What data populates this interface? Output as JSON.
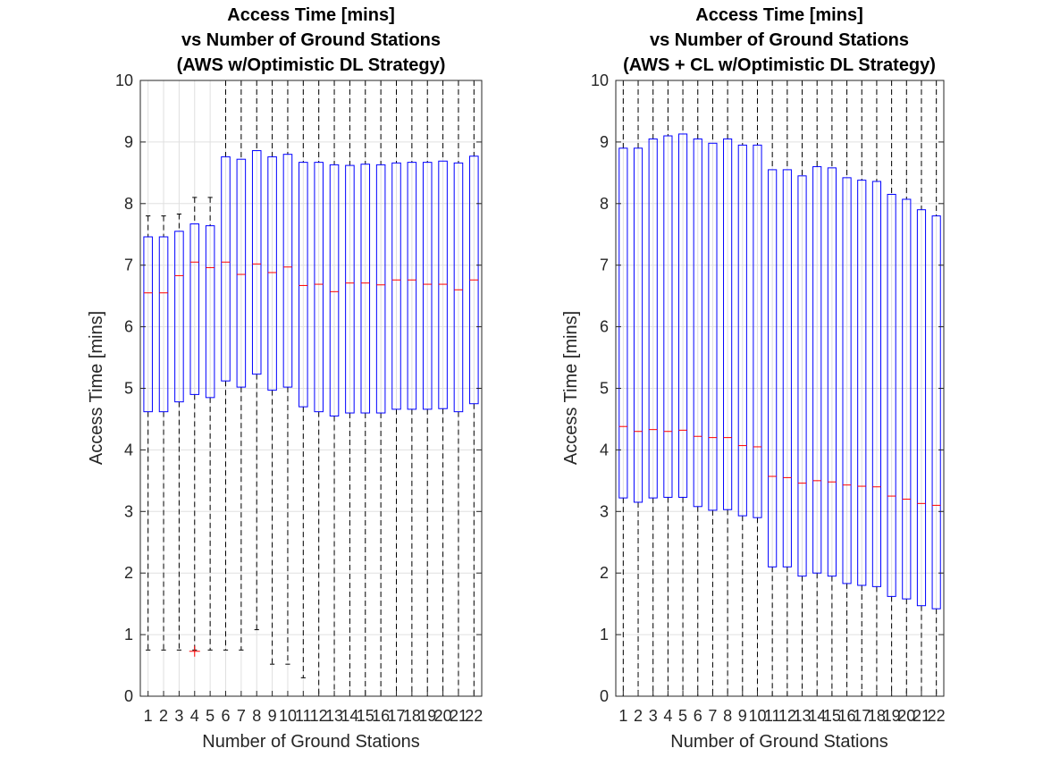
{
  "colors": {
    "box": "#0000ff",
    "median": "#ff0000",
    "whisker": "#000000",
    "outlier": "#ff0000",
    "grid": "#e0e0e0",
    "axis": "#262626"
  },
  "chart_data": [
    {
      "type": "boxplot",
      "title": [
        "Access Time [mins]",
        "vs Number of Ground Stations",
        "(AWS w/Optimistic DL Strategy)"
      ],
      "xlabel": "Number of Ground Stations",
      "ylabel": "Access Time [mins]",
      "ylim": [
        0,
        10
      ],
      "yticks": [
        0,
        1,
        2,
        3,
        4,
        5,
        6,
        7,
        8,
        9,
        10
      ],
      "grid": true,
      "categories": [
        "1",
        "2",
        "3",
        "4",
        "5",
        "6",
        "7",
        "8",
        "9",
        "10",
        "11",
        "12",
        "13",
        "14",
        "15",
        "16",
        "17",
        "18",
        "19",
        "20",
        "21",
        "22"
      ],
      "boxes": [
        {
          "whisker_low": 0.75,
          "q1": 4.62,
          "median": 6.55,
          "q3": 7.46,
          "whisker_high": 7.8
        },
        {
          "whisker_low": 0.75,
          "q1": 4.62,
          "median": 6.55,
          "q3": 7.46,
          "whisker_high": 7.8
        },
        {
          "whisker_low": 0.75,
          "q1": 4.78,
          "median": 6.83,
          "q3": 7.55,
          "whisker_high": 7.83
        },
        {
          "whisker_low": 0.75,
          "q1": 4.9,
          "median": 7.05,
          "q3": 7.67,
          "whisker_high": 8.1,
          "outliers": [
            0.73
          ]
        },
        {
          "whisker_low": 0.75,
          "q1": 4.85,
          "median": 6.96,
          "q3": 7.64,
          "whisker_high": 8.1
        },
        {
          "whisker_low": 0.75,
          "q1": 5.12,
          "median": 7.05,
          "q3": 8.76,
          "whisker_high": 10
        },
        {
          "whisker_low": 0.75,
          "q1": 5.02,
          "median": 6.85,
          "q3": 8.72,
          "whisker_high": 10
        },
        {
          "whisker_low": 1.08,
          "q1": 5.23,
          "median": 7.02,
          "q3": 8.86,
          "whisker_high": 10
        },
        {
          "whisker_low": 0.52,
          "q1": 4.97,
          "median": 6.88,
          "q3": 8.76,
          "whisker_high": 10
        },
        {
          "whisker_low": 0.52,
          "q1": 5.02,
          "median": 6.97,
          "q3": 8.8,
          "whisker_high": 10
        },
        {
          "whisker_low": 0.3,
          "q1": 4.7,
          "median": 6.67,
          "q3": 8.67,
          "whisker_high": 10
        },
        {
          "whisker_low": 0,
          "q1": 4.62,
          "median": 6.69,
          "q3": 8.67,
          "whisker_high": 10
        },
        {
          "whisker_low": 0,
          "q1": 4.55,
          "median": 6.57,
          "q3": 8.63,
          "whisker_high": 10
        },
        {
          "whisker_low": 0,
          "q1": 4.6,
          "median": 6.71,
          "q3": 8.62,
          "whisker_high": 10
        },
        {
          "whisker_low": 0,
          "q1": 4.6,
          "median": 6.71,
          "q3": 8.64,
          "whisker_high": 10
        },
        {
          "whisker_low": 0,
          "q1": 4.6,
          "median": 6.68,
          "q3": 8.63,
          "whisker_high": 10
        },
        {
          "whisker_low": 0,
          "q1": 4.66,
          "median": 6.76,
          "q3": 8.66,
          "whisker_high": 10
        },
        {
          "whisker_low": 0,
          "q1": 4.66,
          "median": 6.76,
          "q3": 8.67,
          "whisker_high": 10
        },
        {
          "whisker_low": 0,
          "q1": 4.66,
          "median": 6.69,
          "q3": 8.67,
          "whisker_high": 10
        },
        {
          "whisker_low": 0,
          "q1": 4.67,
          "median": 6.69,
          "q3": 8.69,
          "whisker_high": 10
        },
        {
          "whisker_low": 0,
          "q1": 4.62,
          "median": 6.6,
          "q3": 8.66,
          "whisker_high": 10
        },
        {
          "whisker_low": 0,
          "q1": 4.75,
          "median": 6.76,
          "q3": 8.77,
          "whisker_high": 10
        }
      ]
    },
    {
      "type": "boxplot",
      "title": [
        "Access Time [mins]",
        "vs Number of Ground Stations",
        "(AWS + CL w/Optimistic DL Strategy)"
      ],
      "xlabel": "Number of Ground Stations",
      "ylabel": "Access Time [mins]",
      "ylim": [
        0,
        10
      ],
      "yticks": [
        0,
        1,
        2,
        3,
        4,
        5,
        6,
        7,
        8,
        9,
        10
      ],
      "grid": true,
      "categories": [
        "1",
        "2",
        "3",
        "4",
        "5",
        "6",
        "7",
        "8",
        "9",
        "10",
        "11",
        "12",
        "13",
        "14",
        "15",
        "16",
        "17",
        "18",
        "19",
        "20",
        "21",
        "22"
      ],
      "boxes": [
        {
          "whisker_low": 0,
          "q1": 3.22,
          "median": 4.38,
          "q3": 8.9,
          "whisker_high": 10
        },
        {
          "whisker_low": 0,
          "q1": 3.15,
          "median": 4.3,
          "q3": 8.9,
          "whisker_high": 10
        },
        {
          "whisker_low": 0,
          "q1": 3.22,
          "median": 4.33,
          "q3": 9.05,
          "whisker_high": 10
        },
        {
          "whisker_low": 0,
          "q1": 3.23,
          "median": 4.3,
          "q3": 9.1,
          "whisker_high": 10
        },
        {
          "whisker_low": 0,
          "q1": 3.23,
          "median": 4.32,
          "q3": 9.13,
          "whisker_high": 10
        },
        {
          "whisker_low": 0,
          "q1": 3.08,
          "median": 4.22,
          "q3": 9.05,
          "whisker_high": 10
        },
        {
          "whisker_low": 0,
          "q1": 3.02,
          "median": 4.2,
          "q3": 8.98,
          "whisker_high": 10
        },
        {
          "whisker_low": 0,
          "q1": 3.03,
          "median": 4.2,
          "q3": 9.05,
          "whisker_high": 10
        },
        {
          "whisker_low": 0,
          "q1": 2.93,
          "median": 4.07,
          "q3": 8.95,
          "whisker_high": 10
        },
        {
          "whisker_low": 0,
          "q1": 2.9,
          "median": 4.05,
          "q3": 8.95,
          "whisker_high": 10
        },
        {
          "whisker_low": 0,
          "q1": 2.1,
          "median": 3.57,
          "q3": 8.55,
          "whisker_high": 10
        },
        {
          "whisker_low": 0,
          "q1": 2.1,
          "median": 3.55,
          "q3": 8.55,
          "whisker_high": 10
        },
        {
          "whisker_low": 0,
          "q1": 1.95,
          "median": 3.46,
          "q3": 8.45,
          "whisker_high": 10
        },
        {
          "whisker_low": 0,
          "q1": 2.0,
          "median": 3.5,
          "q3": 8.6,
          "whisker_high": 10
        },
        {
          "whisker_low": 0,
          "q1": 1.95,
          "median": 3.48,
          "q3": 8.58,
          "whisker_high": 10
        },
        {
          "whisker_low": 0,
          "q1": 1.83,
          "median": 3.43,
          "q3": 8.42,
          "whisker_high": 10
        },
        {
          "whisker_low": 0,
          "q1": 1.8,
          "median": 3.41,
          "q3": 8.38,
          "whisker_high": 10
        },
        {
          "whisker_low": 0,
          "q1": 1.78,
          "median": 3.4,
          "q3": 8.36,
          "whisker_high": 10
        },
        {
          "whisker_low": 0,
          "q1": 1.62,
          "median": 3.25,
          "q3": 8.15,
          "whisker_high": 10
        },
        {
          "whisker_low": 0,
          "q1": 1.58,
          "median": 3.2,
          "q3": 8.07,
          "whisker_high": 10
        },
        {
          "whisker_low": 0,
          "q1": 1.47,
          "median": 3.13,
          "q3": 7.9,
          "whisker_high": 10
        },
        {
          "whisker_low": 0,
          "q1": 1.42,
          "median": 3.1,
          "q3": 7.8,
          "whisker_high": 10
        }
      ]
    }
  ]
}
